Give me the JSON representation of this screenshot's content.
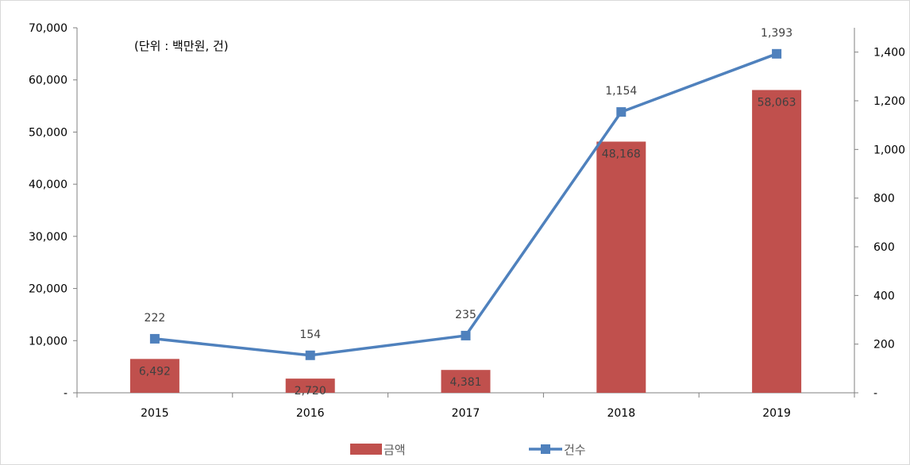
{
  "chart_data": {
    "type": "bar+line",
    "unit_note": "(단위 : 백만원, 건)",
    "categories": [
      "2015",
      "2016",
      "2017",
      "2018",
      "2019"
    ],
    "series": [
      {
        "name": "금액",
        "type": "bar",
        "axis": "left",
        "values": [
          6492,
          2720,
          4381,
          48168,
          58063
        ],
        "labels": [
          "6,492",
          "2,720",
          "4,381",
          "48,168",
          "58,063"
        ],
        "color": "#c0504d"
      },
      {
        "name": "건수",
        "type": "line",
        "axis": "right",
        "values": [
          222,
          154,
          235,
          1154,
          1393
        ],
        "labels": [
          "222",
          "154",
          "235",
          "1,154",
          "1,393"
        ],
        "color": "#4f81bd"
      }
    ],
    "y_left": {
      "min": 0,
      "max": 70000,
      "ticks": [
        0,
        10000,
        20000,
        30000,
        40000,
        50000,
        60000,
        70000
      ],
      "tick_labels": [
        "-",
        "10,000",
        "20,000",
        "30,000",
        "40,000",
        "50,000",
        "60,000",
        "70,000"
      ]
    },
    "y_right": {
      "min": 0,
      "max": 1500,
      "ticks": [
        0,
        200,
        400,
        600,
        800,
        1000,
        1200,
        1400
      ],
      "tick_labels": [
        "-",
        "200",
        "400",
        "600",
        "800",
        "1,000",
        "1,200",
        "1,400"
      ]
    },
    "grid": false,
    "legend_position": "bottom"
  }
}
